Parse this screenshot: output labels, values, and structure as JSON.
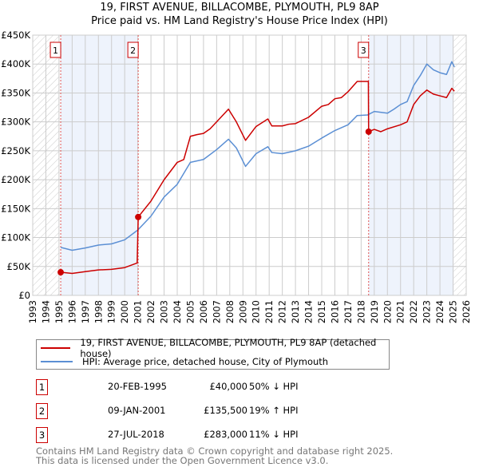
{
  "chart_data": {
    "type": "line",
    "title": "19, FIRST AVENUE, BILLACOMBE, PLYMOUTH, PL9 8AP",
    "subtitle": "Price paid vs. HM Land Registry's House Price Index (HPI)",
    "xlim": [
      1993,
      2026
    ],
    "ylim": [
      0,
      450000
    ],
    "x_ticks": [
      "1993",
      "1994",
      "1995",
      "1996",
      "1997",
      "1998",
      "1999",
      "2000",
      "2001",
      "2002",
      "2003",
      "2004",
      "2005",
      "2006",
      "2007",
      "2008",
      "2009",
      "2010",
      "2011",
      "2012",
      "2013",
      "2014",
      "2015",
      "2016",
      "2017",
      "2018",
      "2019",
      "2020",
      "2021",
      "2022",
      "2023",
      "2024",
      "2025",
      "2026"
    ],
    "y_ticks": [
      {
        "v": 0,
        "label": "£0"
      },
      {
        "v": 50000,
        "label": "£50K"
      },
      {
        "v": 100000,
        "label": "£100K"
      },
      {
        "v": 150000,
        "label": "£150K"
      },
      {
        "v": 200000,
        "label": "£200K"
      },
      {
        "v": 250000,
        "label": "£250K"
      },
      {
        "v": 300000,
        "label": "£300K"
      },
      {
        "v": 350000,
        "label": "£350K"
      },
      {
        "v": 400000,
        "label": "£400K"
      },
      {
        "v": 450000,
        "label": "£450K"
      }
    ],
    "grid": true,
    "hatched_ranges": [
      [
        1993,
        1995
      ],
      [
        2025.05,
        2026
      ]
    ],
    "shaded_ranges": [
      [
        1995.13,
        2001.03
      ],
      [
        2018.57,
        2025.05
      ]
    ],
    "series": [
      {
        "name": "19, FIRST AVENUE, BILLACOMBE, PLYMOUTH, PL9 8AP (detached house)",
        "color": "#cc0000",
        "points": [
          [
            1995.13,
            40000
          ],
          [
            1996,
            38000
          ],
          [
            1997,
            41000
          ],
          [
            1998,
            44000
          ],
          [
            1999,
            45000
          ],
          [
            2000,
            48000
          ],
          [
            2000.95,
            56000
          ],
          [
            2001.03,
            135500
          ],
          [
            2002,
            163000
          ],
          [
            2003,
            200000
          ],
          [
            2004,
            230000
          ],
          [
            2004.5,
            235000
          ],
          [
            2005,
            275000
          ],
          [
            2005.5,
            278000
          ],
          [
            2006,
            280000
          ],
          [
            2006.5,
            288000
          ],
          [
            2007,
            300000
          ],
          [
            2007.9,
            322000
          ],
          [
            2008.5,
            300000
          ],
          [
            2009.2,
            268000
          ],
          [
            2010,
            292000
          ],
          [
            2010.9,
            305000
          ],
          [
            2011.2,
            293000
          ],
          [
            2012,
            293000
          ],
          [
            2012.5,
            296000
          ],
          [
            2013,
            297000
          ],
          [
            2014,
            308000
          ],
          [
            2015,
            327000
          ],
          [
            2015.5,
            330000
          ],
          [
            2016,
            340000
          ],
          [
            2016.5,
            342000
          ],
          [
            2017,
            352000
          ],
          [
            2017.7,
            370000
          ],
          [
            2018.55,
            370000
          ],
          [
            2018.57,
            283000
          ],
          [
            2019,
            287000
          ],
          [
            2019.5,
            283000
          ],
          [
            2020,
            288000
          ],
          [
            2021,
            295000
          ],
          [
            2021.5,
            300000
          ],
          [
            2022,
            330000
          ],
          [
            2022.5,
            345000
          ],
          [
            2023,
            355000
          ],
          [
            2023.5,
            348000
          ],
          [
            2024,
            345000
          ],
          [
            2024.5,
            342000
          ],
          [
            2024.9,
            358000
          ],
          [
            2025.1,
            353000
          ]
        ]
      },
      {
        "name": "HPI: Average price, detached house, City of Plymouth",
        "color": "#5b8fd4",
        "points": [
          [
            1995.13,
            83000
          ],
          [
            1996,
            78000
          ],
          [
            1997,
            82000
          ],
          [
            1998,
            87000
          ],
          [
            1999,
            89000
          ],
          [
            2000,
            96000
          ],
          [
            2001,
            113000
          ],
          [
            2002,
            137000
          ],
          [
            2003,
            170000
          ],
          [
            2004,
            192000
          ],
          [
            2005,
            230000
          ],
          [
            2006,
            235000
          ],
          [
            2007,
            252000
          ],
          [
            2007.9,
            270000
          ],
          [
            2008.5,
            255000
          ],
          [
            2009.2,
            223000
          ],
          [
            2010,
            245000
          ],
          [
            2010.9,
            257000
          ],
          [
            2011.2,
            247000
          ],
          [
            2012,
            245000
          ],
          [
            2013,
            250000
          ],
          [
            2014,
            258000
          ],
          [
            2015,
            272000
          ],
          [
            2016,
            285000
          ],
          [
            2017,
            295000
          ],
          [
            2017.7,
            311000
          ],
          [
            2018.5,
            312000
          ],
          [
            2019,
            318000
          ],
          [
            2020,
            315000
          ],
          [
            2020.5,
            322000
          ],
          [
            2021,
            330000
          ],
          [
            2021.5,
            335000
          ],
          [
            2022,
            363000
          ],
          [
            2022.5,
            380000
          ],
          [
            2023,
            400000
          ],
          [
            2023.5,
            390000
          ],
          [
            2024,
            385000
          ],
          [
            2024.5,
            382000
          ],
          [
            2024.9,
            404000
          ],
          [
            2025.1,
            395000
          ]
        ]
      }
    ],
    "sales": [
      {
        "id": "1",
        "x": 1995.13,
        "price": 40000
      },
      {
        "id": "2",
        "x": 2001.03,
        "price": 135500
      },
      {
        "id": "3",
        "x": 2018.57,
        "price": 283000
      }
    ],
    "legend": [
      "19, FIRST AVENUE, BILLACOMBE, PLYMOUTH, PL9 8AP (detached house)",
      "HPI: Average price, detached house, City of Plymouth"
    ],
    "legend_position": "bottom"
  },
  "table": [
    {
      "id": "1",
      "date": "20-FEB-1995",
      "price": "£40,000",
      "hpi": "50% ↓ HPI"
    },
    {
      "id": "2",
      "date": "09-JAN-2001",
      "price": "£135,500",
      "hpi": "19% ↑ HPI"
    },
    {
      "id": "3",
      "date": "27-JUL-2018",
      "price": "£283,000",
      "hpi": "11% ↓ HPI"
    }
  ],
  "footer": [
    "Contains HM Land Registry data © Crown copyright and database right 2025.",
    "This data is licensed under the Open Government Licence v3.0."
  ]
}
